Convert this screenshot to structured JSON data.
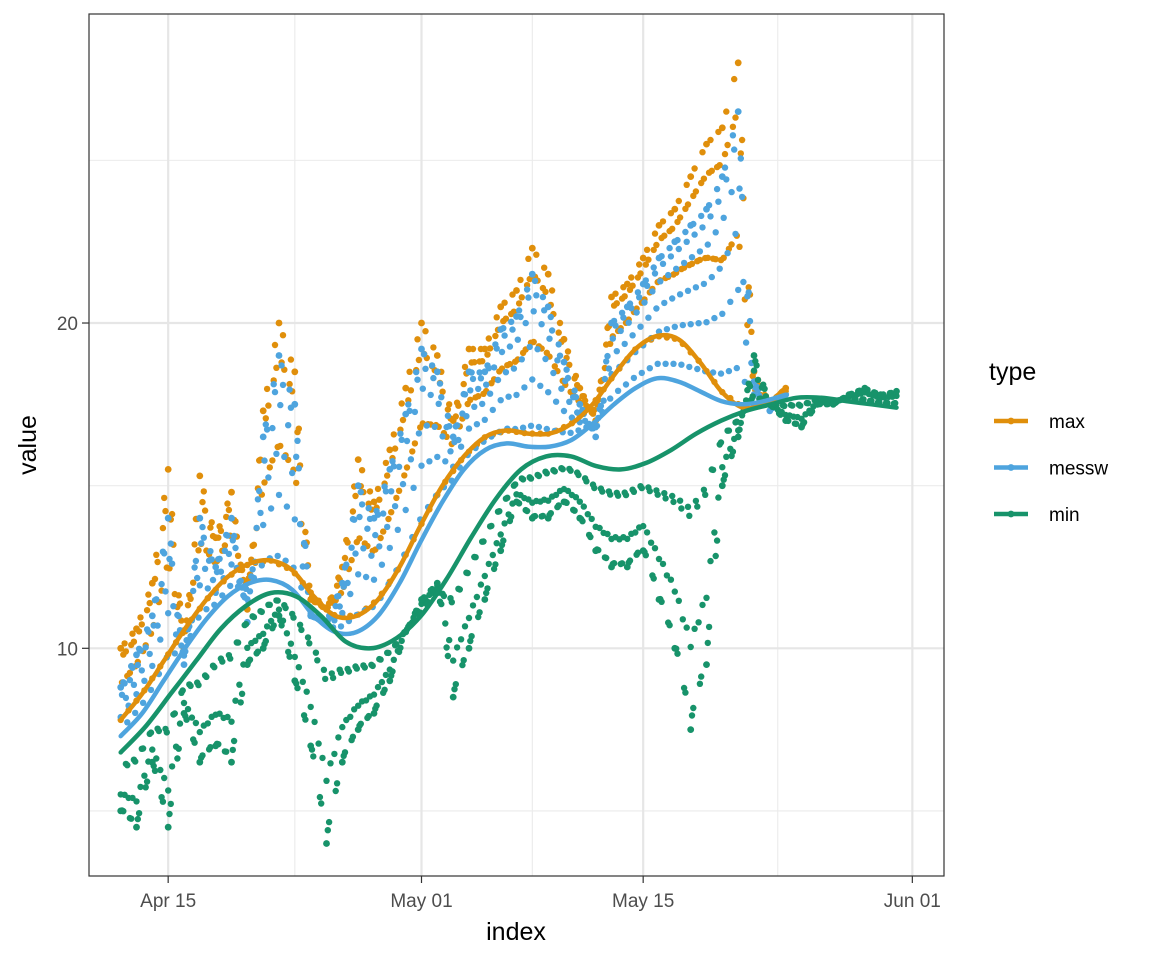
{
  "chart_data": {
    "type": "line",
    "xlabel": "index",
    "ylabel": "value",
    "x_axis_kind": "date",
    "x_ticks": [
      "Apr 15",
      "May 01",
      "May 15",
      "Jun 01"
    ],
    "x_tick_dates": [
      "2021-04-15",
      "2021-05-01",
      "2021-05-15",
      "2021-06-01"
    ],
    "xlim": [
      "2021-04-10",
      "2021-06-03"
    ],
    "y_ticks": [
      10,
      20
    ],
    "ylim": [
      3,
      29.5
    ],
    "grid": true,
    "legend": {
      "title": "type",
      "position": "right"
    },
    "series": [
      {
        "name": "max",
        "color": "#E08F0B",
        "x": [
          "2021-04-12",
          "2021-04-13",
          "2021-04-14",
          "2021-04-15",
          "2021-04-16",
          "2021-04-17",
          "2021-04-18",
          "2021-04-19",
          "2021-04-20",
          "2021-04-21",
          "2021-04-22",
          "2021-04-23",
          "2021-04-24",
          "2021-04-25",
          "2021-04-26",
          "2021-04-27",
          "2021-04-28",
          "2021-04-29",
          "2021-04-30",
          "2021-05-01",
          "2021-05-02",
          "2021-05-03",
          "2021-05-04",
          "2021-05-05",
          "2021-05-06",
          "2021-05-07",
          "2021-05-08",
          "2021-05-09",
          "2021-05-10",
          "2021-05-11",
          "2021-05-12",
          "2021-05-13",
          "2021-05-14",
          "2021-05-15",
          "2021-05-16",
          "2021-05-17",
          "2021-05-18",
          "2021-05-19",
          "2021-05-20",
          "2021-05-21",
          "2021-05-22",
          "2021-05-23",
          "2021-05-24"
        ],
        "values": [
          10.0,
          10.6,
          12.0,
          15.5,
          10.0,
          15.3,
          13.4,
          14.8,
          11.2,
          17.3,
          20.0,
          18.5,
          11.5,
          11.2,
          12.5,
          15.8,
          14.5,
          16.1,
          18.0,
          20.0,
          19.0,
          17.0,
          19.2,
          19.2,
          20.5,
          21.0,
          22.3,
          21.5,
          19.5,
          18.0,
          17.0,
          20.8,
          21.2,
          22.0,
          23.0,
          23.5,
          24.5,
          25.5,
          26.0,
          28.0,
          18.5,
          17.5,
          18.0
        ],
        "trend": [
          7.8,
          8.6,
          9.6,
          10.6,
          11.5,
          12.2,
          12.6,
          12.7,
          12.4,
          11.6,
          11.0,
          11.0,
          11.5,
          12.5,
          13.8,
          15.0,
          15.9,
          16.5,
          16.7,
          16.6,
          16.6,
          16.9,
          17.5,
          18.4,
          19.2,
          19.6,
          19.5,
          18.8,
          17.9,
          17.4,
          17.5,
          17.9
        ]
      },
      {
        "name": "messw",
        "color": "#4EA4DE",
        "x": [
          "2021-04-12",
          "2021-04-13",
          "2021-04-14",
          "2021-04-15",
          "2021-04-16",
          "2021-04-17",
          "2021-04-18",
          "2021-04-19",
          "2021-04-20",
          "2021-04-21",
          "2021-04-22",
          "2021-04-23",
          "2021-04-24",
          "2021-04-25",
          "2021-04-26",
          "2021-04-27",
          "2021-04-28",
          "2021-04-29",
          "2021-04-30",
          "2021-05-01",
          "2021-05-02",
          "2021-05-03",
          "2021-05-04",
          "2021-05-05",
          "2021-05-06",
          "2021-05-07",
          "2021-05-08",
          "2021-05-09",
          "2021-05-10",
          "2021-05-11",
          "2021-05-12",
          "2021-05-13",
          "2021-05-14",
          "2021-05-15",
          "2021-05-16",
          "2021-05-17",
          "2021-05-18",
          "2021-05-19",
          "2021-05-20",
          "2021-05-21",
          "2021-05-22",
          "2021-05-23",
          "2021-05-24"
        ],
        "values": [
          8.8,
          9.8,
          11.0,
          14.0,
          9.5,
          14.0,
          12.5,
          14.0,
          10.8,
          16.5,
          19.0,
          17.5,
          11.0,
          10.8,
          12.0,
          15.0,
          14.0,
          15.5,
          17.2,
          19.2,
          18.5,
          16.5,
          18.5,
          18.5,
          19.8,
          20.2,
          21.5,
          20.5,
          18.8,
          17.5,
          16.5,
          20.0,
          20.5,
          21.2,
          22.0,
          22.5,
          23.0,
          23.5,
          24.5,
          26.5,
          18.2,
          17.3,
          17.8
        ],
        "trend": [
          7.3,
          8.0,
          9.0,
          10.0,
          10.9,
          11.6,
          12.0,
          12.1,
          11.8,
          11.0,
          10.5,
          10.5,
          11.0,
          12.0,
          13.3,
          14.5,
          15.5,
          16.1,
          16.3,
          16.2,
          16.2,
          16.4,
          16.9,
          17.5,
          18.0,
          18.3,
          18.2,
          17.9,
          17.6,
          17.5,
          17.6,
          17.8
        ]
      },
      {
        "name": "min",
        "color": "#17936A",
        "x": [
          "2021-04-12",
          "2021-04-13",
          "2021-04-14",
          "2021-04-15",
          "2021-04-16",
          "2021-04-17",
          "2021-04-18",
          "2021-04-19",
          "2021-04-20",
          "2021-04-21",
          "2021-04-22",
          "2021-04-23",
          "2021-04-24",
          "2021-04-25",
          "2021-04-26",
          "2021-04-27",
          "2021-04-28",
          "2021-04-29",
          "2021-04-30",
          "2021-05-01",
          "2021-05-02",
          "2021-05-03",
          "2021-05-04",
          "2021-05-05",
          "2021-05-06",
          "2021-05-07",
          "2021-05-08",
          "2021-05-09",
          "2021-05-10",
          "2021-05-11",
          "2021-05-12",
          "2021-05-13",
          "2021-05-14",
          "2021-05-15",
          "2021-05-16",
          "2021-05-17",
          "2021-05-18",
          "2021-05-19",
          "2021-05-20",
          "2021-05-21",
          "2021-05-22",
          "2021-05-23",
          "2021-05-24",
          "2021-05-25",
          "2021-05-26",
          "2021-05-27",
          "2021-05-28",
          "2021-05-29",
          "2021-05-30",
          "2021-05-31"
        ],
        "values": [
          5.0,
          4.5,
          6.5,
          4.5,
          8.0,
          6.5,
          7.0,
          6.5,
          9.5,
          10.0,
          11.0,
          9.0,
          7.0,
          4.0,
          6.5,
          7.5,
          8.0,
          9.0,
          10.5,
          11.5,
          12.0,
          8.5,
          10.0,
          11.5,
          13.0,
          14.5,
          14.0,
          14.0,
          14.5,
          14.0,
          13.0,
          12.5,
          12.5,
          13.0,
          11.5,
          10.0,
          7.5,
          9.5,
          15.0,
          16.5,
          19.0,
          17.5,
          17.0,
          16.8,
          17.5,
          17.5,
          17.8,
          18.0,
          17.8,
          17.9
        ],
        "trend": [
          6.8,
          7.6,
          8.6,
          9.6,
          10.6,
          11.3,
          11.7,
          11.6,
          11.0,
          10.2,
          10.0,
          10.3,
          11.0,
          12.1,
          13.4,
          14.6,
          15.5,
          15.9,
          15.9,
          15.6,
          15.5,
          15.7,
          16.1,
          16.6,
          17.0,
          17.3,
          17.5,
          17.7,
          17.7,
          17.6,
          17.5,
          17.4
        ]
      }
    ]
  }
}
